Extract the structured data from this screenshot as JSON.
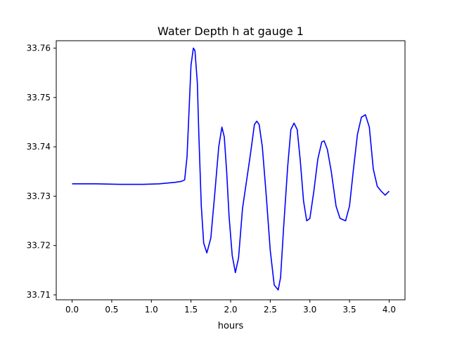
{
  "chart_data": {
    "type": "line",
    "title": "Water Depth h at gauge 1",
    "xlabel": "hours",
    "ylabel": "",
    "xlim": [
      -0.2,
      4.2
    ],
    "ylim": [
      33.709,
      33.7615
    ],
    "xticks": [
      0.0,
      0.5,
      1.0,
      1.5,
      2.0,
      2.5,
      3.0,
      3.5,
      4.0
    ],
    "xtick_labels": [
      "0.0",
      "0.5",
      "1.0",
      "1.5",
      "2.0",
      "2.5",
      "3.0",
      "3.5",
      "4.0"
    ],
    "yticks": [
      33.71,
      33.72,
      33.73,
      33.74,
      33.75,
      33.76
    ],
    "ytick_labels": [
      "33.71",
      "33.72",
      "33.73",
      "33.74",
      "33.75",
      "33.76"
    ],
    "grid": false,
    "legend": "none",
    "series": [
      {
        "color": "#0000ff",
        "x": [
          0.0,
          0.3,
          0.6,
          0.9,
          1.1,
          1.3,
          1.38,
          1.42,
          1.45,
          1.48,
          1.5,
          1.53,
          1.55,
          1.58,
          1.6,
          1.63,
          1.66,
          1.7,
          1.75,
          1.8,
          1.85,
          1.89,
          1.92,
          1.95,
          1.98,
          2.02,
          2.06,
          2.1,
          2.15,
          2.2,
          2.25,
          2.3,
          2.33,
          2.36,
          2.4,
          2.45,
          2.5,
          2.55,
          2.6,
          2.63,
          2.67,
          2.72,
          2.76,
          2.8,
          2.84,
          2.88,
          2.92,
          2.96,
          3.0,
          3.05,
          3.1,
          3.15,
          3.18,
          3.22,
          3.27,
          3.33,
          3.38,
          3.45,
          3.5,
          3.55,
          3.6,
          3.65,
          3.7,
          3.75,
          3.8,
          3.85,
          3.9,
          3.95,
          4.0
        ],
        "y": [
          33.7325,
          33.7325,
          33.7324,
          33.7324,
          33.7325,
          33.7328,
          33.733,
          33.7333,
          33.738,
          33.749,
          33.7565,
          33.76,
          33.7595,
          33.753,
          33.742,
          33.728,
          33.7205,
          33.7185,
          33.7215,
          33.7305,
          33.74,
          33.744,
          33.742,
          33.735,
          33.726,
          33.718,
          33.7145,
          33.7175,
          33.7275,
          33.733,
          33.7385,
          33.7445,
          33.7452,
          33.7445,
          33.74,
          33.73,
          33.719,
          33.712,
          33.711,
          33.7135,
          33.724,
          33.736,
          33.7435,
          33.7448,
          33.7435,
          33.737,
          33.729,
          33.725,
          33.7255,
          33.731,
          33.7375,
          33.741,
          33.7412,
          33.7395,
          33.735,
          33.728,
          33.7255,
          33.725,
          33.728,
          33.7355,
          33.7425,
          33.746,
          33.7465,
          33.744,
          33.7355,
          33.732,
          33.731,
          33.7302,
          33.731
        ]
      }
    ]
  }
}
